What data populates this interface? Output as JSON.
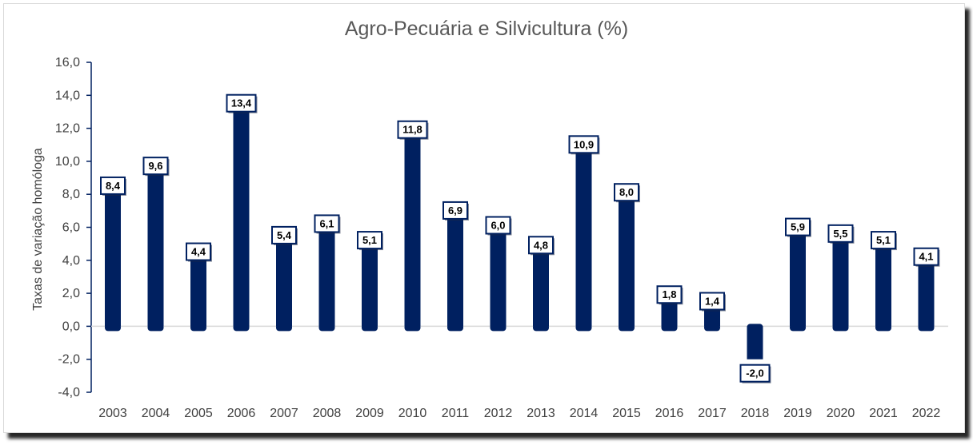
{
  "chart_data": {
    "type": "bar",
    "title": "Agro-Pecuária e Silvicultura (%)",
    "xlabel": "",
    "ylabel": "Taxas de variação homóloga",
    "categories": [
      "2003",
      "2004",
      "2005",
      "2006",
      "2007",
      "2008",
      "2009",
      "2010",
      "2011",
      "2012",
      "2013",
      "2014",
      "2015",
      "2016",
      "2017",
      "2018",
      "2019",
      "2020",
      "2021",
      "2022"
    ],
    "values": [
      8.4,
      9.6,
      4.4,
      13.4,
      5.4,
      6.1,
      5.1,
      11.8,
      6.9,
      6.0,
      4.8,
      10.9,
      8.0,
      1.8,
      1.4,
      -2.0,
      5.9,
      5.5,
      5.1,
      4.1
    ],
    "data_labels": [
      "8,4",
      "9,6",
      "4,4",
      "13,4",
      "5,4",
      "6,1",
      "5,1",
      "11,8",
      "6,9",
      "6,0",
      "4,8",
      "10,9",
      "8,0",
      "1,8",
      "1,4",
      "-2,0",
      "5,9",
      "5,5",
      "5,1",
      "4,1"
    ],
    "ylim": [
      -4.0,
      16.0
    ],
    "yticks": [
      "16,0",
      "14,0",
      "12,0",
      "10,0",
      "8,0",
      "6,0",
      "4,0",
      "2,0",
      "0,0",
      "-2,0",
      "-4,0"
    ],
    "ytick_values": [
      16,
      14,
      12,
      10,
      8,
      6,
      4,
      2,
      0,
      -2,
      -4
    ],
    "grid": false,
    "legend": "none",
    "bar_color": "#002060"
  }
}
